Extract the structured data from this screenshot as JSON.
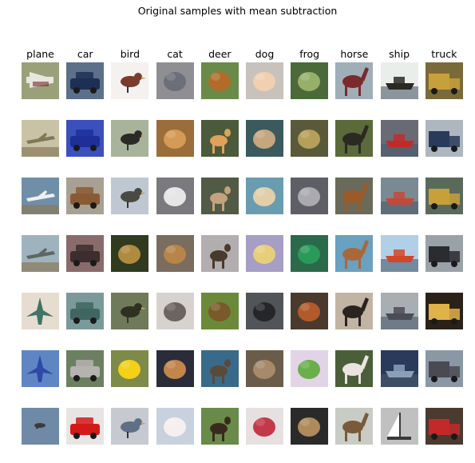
{
  "title": "Original samples with mean subtraction",
  "classes": [
    "plane",
    "car",
    "bird",
    "cat",
    "deer",
    "dog",
    "frog",
    "horse",
    "ship",
    "truck"
  ],
  "samples_per_class": 7,
  "images": [
    [
      {
        "bg": "#9aa07a",
        "fg": "#e8e6e0",
        "shape": "plane-wide"
      },
      {
        "bg": "#c9c2a6",
        "fg": "#7f7a55",
        "shape": "plane-side"
      },
      {
        "bg": "#6f8fa8",
        "fg": "#f0f0f0",
        "shape": "plane-side"
      },
      {
        "bg": "#9fb3bf",
        "fg": "#5e6663",
        "shape": "plane-side"
      },
      {
        "bg": "#e6dcd0",
        "fg": "#3f7466",
        "shape": "jet"
      },
      {
        "bg": "#5f86c3",
        "fg": "#2e49a8",
        "shape": "jet"
      },
      {
        "bg": "#6f8aa6",
        "fg": "#3b3b3b",
        "shape": "dot"
      }
    ],
    [
      {
        "bg": "#5c708a",
        "fg": "#1d2f54",
        "shape": "car"
      },
      {
        "bg": "#3b4fbd",
        "fg": "#1f2f99",
        "shape": "car"
      },
      {
        "bg": "#a8a092",
        "fg": "#8a5a35",
        "shape": "car"
      },
      {
        "bg": "#8a6b6b",
        "fg": "#3c2e2e",
        "shape": "car"
      },
      {
        "bg": "#7a9a9a",
        "fg": "#3f6660",
        "shape": "car"
      },
      {
        "bg": "#6a8060",
        "fg": "#b6b2b0",
        "shape": "car"
      },
      {
        "bg": "#e8e4e4",
        "fg": "#d21a1a",
        "shape": "car"
      }
    ],
    [
      {
        "bg": "#f4f1ef",
        "fg": "#7b3b2a",
        "shape": "bird"
      },
      {
        "bg": "#a7b39a",
        "fg": "#2c2a26",
        "shape": "bird"
      },
      {
        "bg": "#bfc8d0",
        "fg": "#4a4a44",
        "shape": "bird"
      },
      {
        "bg": "#2f3a1e",
        "fg": "#b08a3e",
        "shape": "blob"
      },
      {
        "bg": "#6f7a5a",
        "fg": "#2e3020",
        "shape": "bird"
      },
      {
        "bg": "#7d8a4a",
        "fg": "#f2d117",
        "shape": "blob"
      },
      {
        "bg": "#c6cad0",
        "fg": "#5f6f86",
        "shape": "bird"
      }
    ],
    [
      {
        "bg": "#8f8f93",
        "fg": "#6c6e78",
        "shape": "blob"
      },
      {
        "bg": "#9a6d3b",
        "fg": "#d49a56",
        "shape": "blob"
      },
      {
        "bg": "#7a7a7e",
        "fg": "#e6e6e6",
        "shape": "blob"
      },
      {
        "bg": "#7a6c5e",
        "fg": "#b7844a",
        "shape": "blob"
      },
      {
        "bg": "#d8d2ce",
        "fg": "#6c645e",
        "shape": "blob"
      },
      {
        "bg": "#2a2c3a",
        "fg": "#c2864a",
        "shape": "blob"
      },
      {
        "bg": "#c8d2de",
        "fg": "#f6eff0",
        "shape": "blob"
      }
    ],
    [
      {
        "bg": "#6a8a4a",
        "fg": "#b36b2a",
        "shape": "blob"
      },
      {
        "bg": "#4a5a3a",
        "fg": "#e0a25a",
        "shape": "deer"
      },
      {
        "bg": "#515a44",
        "fg": "#c4a27e",
        "shape": "deer"
      },
      {
        "bg": "#b2aeb0",
        "fg": "#4a3a2a",
        "shape": "deer"
      },
      {
        "bg": "#6a8a3a",
        "fg": "#7a5a2a",
        "shape": "blob"
      },
      {
        "bg": "#3a6a8a",
        "fg": "#5a4a3a",
        "shape": "deer"
      },
      {
        "bg": "#6a8a4a",
        "fg": "#3a2a1e",
        "shape": "deer"
      }
    ],
    [
      {
        "bg": "#c8c2bc",
        "fg": "#f0d0b0",
        "shape": "blob"
      },
      {
        "bg": "#3a5a5e",
        "fg": "#c6a67e",
        "shape": "blob"
      },
      {
        "bg": "#6a9cb0",
        "fg": "#e2cfaa",
        "shape": "blob"
      },
      {
        "bg": "#a69ec4",
        "fg": "#e7cf7a",
        "shape": "blob"
      },
      {
        "bg": "#515458",
        "fg": "#24262a",
        "shape": "blob"
      },
      {
        "bg": "#6a5c4a",
        "fg": "#a68a6a",
        "shape": "blob"
      },
      {
        "bg": "#e6e0e0",
        "fg": "#c23a4a",
        "shape": "blob"
      }
    ],
    [
      {
        "bg": "#4a6a3a",
        "fg": "#96b06a",
        "shape": "blob"
      },
      {
        "bg": "#5a5a3a",
        "fg": "#b4a05a",
        "shape": "blob"
      },
      {
        "bg": "#5e5e66",
        "fg": "#aaaab0",
        "shape": "blob"
      },
      {
        "bg": "#2a6a4a",
        "fg": "#2a9a5a",
        "shape": "blob"
      },
      {
        "bg": "#4a3a2e",
        "fg": "#b25a2a",
        "shape": "blob"
      },
      {
        "bg": "#e2d4e6",
        "fg": "#6ab04a",
        "shape": "blob"
      },
      {
        "bg": "#2a2a2a",
        "fg": "#b08a5a",
        "shape": "blob"
      }
    ],
    [
      {
        "bg": "#a0aeb8",
        "fg": "#7a2a2a",
        "shape": "horse"
      },
      {
        "bg": "#5a6a3a",
        "fg": "#2a2a22",
        "shape": "horse"
      },
      {
        "bg": "#6a6a5a",
        "fg": "#9a5a2a",
        "shape": "horse"
      },
      {
        "bg": "#6aa0c0",
        "fg": "#a8683a",
        "shape": "horse"
      },
      {
        "bg": "#c2b4a4",
        "fg": "#2a2320",
        "shape": "horse"
      },
      {
        "bg": "#4a5e3a",
        "fg": "#eae4e0",
        "shape": "horse"
      },
      {
        "bg": "#c8ccc4",
        "fg": "#7a5a3a",
        "shape": "horse"
      }
    ],
    [
      {
        "bg": "#eaeeea",
        "fg": "#2a2a22",
        "shape": "ship"
      },
      {
        "bg": "#6a6a74",
        "fg": "#c22a2a",
        "shape": "ship"
      },
      {
        "bg": "#7a8a92",
        "fg": "#c24a3a",
        "shape": "ship"
      },
      {
        "bg": "#b2cfe8",
        "fg": "#d2462a",
        "shape": "ship"
      },
      {
        "bg": "#a8aeb2",
        "fg": "#4a4e52",
        "shape": "ship"
      },
      {
        "bg": "#2a3a5a",
        "fg": "#8aa0b8",
        "shape": "ship"
      },
      {
        "bg": "#c0c0c0",
        "fg": "#3a3a3a",
        "shape": "sail"
      }
    ],
    [
      {
        "bg": "#7a6a3a",
        "fg": "#c8a03a",
        "shape": "truck"
      },
      {
        "bg": "#aeb6c0",
        "fg": "#2a3a5a",
        "shape": "truck"
      },
      {
        "bg": "#5a6a5a",
        "fg": "#c8a03a",
        "shape": "truck"
      },
      {
        "bg": "#9aa2a8",
        "fg": "#2a2c30",
        "shape": "truck"
      },
      {
        "bg": "#2a2218",
        "fg": "#e0b24a",
        "shape": "truck"
      },
      {
        "bg": "#8a98a6",
        "fg": "#4a4a52",
        "shape": "truck"
      },
      {
        "bg": "#4a3a30",
        "fg": "#c22a2a",
        "shape": "truck"
      }
    ]
  ]
}
